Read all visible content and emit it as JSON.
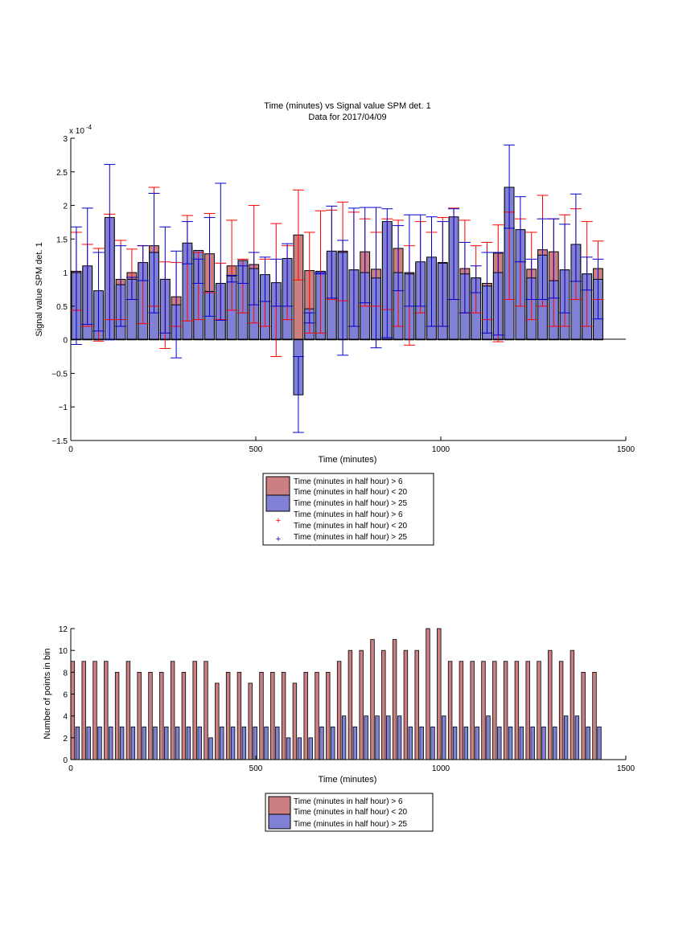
{
  "figure": {
    "title": "Time (minutes) vs Signal value SPM det. 1",
    "subtitle": "Data for 2017/04/09"
  },
  "chart_data": [
    {
      "type": "bar",
      "title": "Time (minutes) vs Signal value SPM det. 1",
      "subtitle": "Data for 2017/04/09",
      "xlabel": "Time (minutes)",
      "ylabel": "Signal value SPM det. 1",
      "y_exponent_label": "x 10",
      "y_exponent_power": "-4",
      "xlim": [
        0,
        1500
      ],
      "ylim": [
        -1.5,
        3
      ],
      "x_ticks": [
        0,
        500,
        1000,
        1500
      ],
      "y_ticks": [
        -1.5,
        -1,
        -0.5,
        0,
        0.5,
        1,
        1.5,
        2,
        2.5,
        3
      ],
      "y_tick_labels": [
        "−1.5",
        "−1",
        "−0.5",
        "0",
        "0.5",
        "1",
        "1.5",
        "2",
        "2.5",
        "3"
      ],
      "y_unit_scale": "1e-4",
      "x": [
        15,
        45,
        75,
        105,
        135,
        165,
        195,
        225,
        255,
        285,
        315,
        345,
        375,
        405,
        435,
        465,
        495,
        525,
        555,
        585,
        615,
        645,
        675,
        705,
        735,
        765,
        795,
        825,
        855,
        885,
        915,
        945,
        975,
        1005,
        1035,
        1065,
        1095,
        1125,
        1155,
        1185,
        1215,
        1245,
        1275,
        1305,
        1335,
        1365,
        1395,
        1425
      ],
      "series": [
        {
          "name": "Time (minutes in half hour) > 6\nTime (minutes in half hour) < 20",
          "color": "#cc7f80",
          "values": [
            1.02,
            1.09,
            0.67,
            1.8,
            0.9,
            1.0,
            1.14,
            1.4,
            0.9,
            0.64,
            1.39,
            1.3,
            1.28,
            0.83,
            1.1,
            1.18,
            1.12,
            0.96,
            0.74,
            1.19,
            1.56,
            1.03,
            1.01,
            1.3,
            1.32,
            1.04,
            1.31,
            1.05,
            1.73,
            1.36,
            1.0,
            1.14,
            1.2,
            1.15,
            1.82,
            1.06,
            0.92,
            0.84,
            1.29,
            2.27,
            1.63,
            1.05,
            1.34,
            1.31,
            1.04,
            1.41,
            0.98,
            1.06
          ],
          "err_low": [
            0.44,
            0.2,
            -0.02,
            0.3,
            0.3,
            0.6,
            0.24,
            0.5,
            -0.13,
            0.2,
            0.28,
            0.3,
            0.7,
            0.3,
            0.44,
            0.4,
            0.25,
            0.2,
            -0.25,
            0.3,
            0.89,
            0.1,
            0.1,
            0.6,
            0.58,
            0.2,
            0.5,
            0.5,
            0.45,
            0.2,
            -0.08,
            0.4,
            0.2,
            0.2,
            0.6,
            0.4,
            0.4,
            0.3,
            -0.03,
            0.6,
            0.5,
            0.3,
            0.5,
            0.2,
            0.2,
            0.6,
            0.2,
            0.6
          ],
          "err_high": [
            1.6,
            1.42,
            1.36,
            1.87,
            1.48,
            1.35,
            1.4,
            2.27,
            1.16,
            1.15,
            1.85,
            1.3,
            1.88,
            1.14,
            1.78,
            1.2,
            2.0,
            1.2,
            1.73,
            1.4,
            2.23,
            1.6,
            1.92,
            1.93,
            2.05,
            1.9,
            1.8,
            1.6,
            1.8,
            1.78,
            1.4,
            1.76,
            1.6,
            1.82,
            1.96,
            1.78,
            1.4,
            1.45,
            1.71,
            1.9,
            1.8,
            1.6,
            2.15,
            1.8,
            1.86,
            1.95,
            1.76,
            1.47
          ]
        },
        {
          "name": "Time (minutes in half hour) > 25",
          "color": "#8080d4",
          "values": [
            1.0,
            1.1,
            0.73,
            1.82,
            0.82,
            0.9,
            1.15,
            1.3,
            0.9,
            0.52,
            1.44,
            1.33,
            0.72,
            0.84,
            0.95,
            1.18,
            1.06,
            0.97,
            0.85,
            1.21,
            -0.82,
            0.46,
            1.02,
            1.32,
            1.3,
            1.04,
            1.0,
            0.92,
            1.76,
            1.0,
            0.98,
            1.16,
            1.23,
            1.14,
            1.83,
            0.98,
            0.92,
            0.8,
            1.0,
            2.27,
            1.64,
            0.92,
            1.26,
            0.88,
            1.04,
            1.42,
            0.98,
            0.9
          ],
          "err_low": [
            -0.07,
            0.23,
            0.13,
            0.0,
            0.2,
            0.6,
            0.88,
            0.4,
            0.1,
            -0.27,
            1.13,
            0.84,
            0.35,
            0.29,
            0.86,
            0.84,
            0.52,
            0.57,
            0.5,
            0.5,
            -1.38,
            0.25,
            0.98,
            0.62,
            -0.23,
            0.2,
            0.55,
            -0.12,
            0.03,
            0.73,
            0.5,
            0.5,
            0.2,
            0.2,
            0.6,
            0.4,
            0.7,
            0.1,
            0.07,
            1.66,
            1.16,
            0.6,
            0.6,
            0.62,
            0.4,
            0.87,
            0.74,
            0.31
          ],
          "err_high": [
            1.68,
            1.96,
            1.3,
            2.61,
            1.4,
            0.93,
            1.4,
            2.18,
            1.68,
            1.32,
            1.76,
            1.2,
            1.82,
            2.33,
            0.96,
            1.1,
            1.3,
            1.23,
            1.2,
            1.43,
            -0.25,
            0.4,
            1.0,
            1.99,
            1.48,
            1.96,
            1.97,
            1.97,
            1.95,
            1.7,
            1.86,
            1.86,
            1.83,
            1.76,
            1.95,
            1.45,
            1.1,
            1.3,
            1.3,
            2.9,
            2.13,
            1.2,
            1.8,
            1.8,
            1.72,
            2.17,
            1.23,
            1.2
          ]
        }
      ],
      "legend": {
        "placement": "below",
        "entries": [
          {
            "kind": "patch",
            "color": "#cc7f80",
            "lines": [
              "Time (minutes in half hour) > 6",
              "Time (minutes in half hour) < 20"
            ]
          },
          {
            "kind": "patch",
            "color": "#8080d4",
            "lines": [
              "Time (minutes in half hour) > 25"
            ]
          },
          {
            "kind": "marker",
            "color": "#ff0000",
            "symbol": "+",
            "lines": [
              "Time (minutes in half hour) > 6",
              "Time (minutes in half hour) < 20"
            ]
          },
          {
            "kind": "marker",
            "color": "#0000cc",
            "symbol": "+",
            "lines": [
              "Time (minutes in half hour) > 25"
            ]
          }
        ]
      },
      "errorbar_colors": [
        "#ff0000",
        "#0000cc"
      ],
      "grid": false
    },
    {
      "type": "bar",
      "title": "",
      "xlabel": "Time (minutes)",
      "ylabel": "Number of points in bin",
      "xlim": [
        0,
        1500
      ],
      "ylim": [
        0,
        12
      ],
      "x_ticks": [
        0,
        500,
        1000,
        1500
      ],
      "y_ticks": [
        0,
        2,
        4,
        6,
        8,
        10,
        12
      ],
      "x": [
        15,
        45,
        75,
        105,
        135,
        165,
        195,
        225,
        255,
        285,
        315,
        345,
        375,
        405,
        435,
        465,
        495,
        525,
        555,
        585,
        615,
        645,
        675,
        705,
        735,
        765,
        795,
        825,
        855,
        885,
        915,
        945,
        975,
        1005,
        1035,
        1065,
        1095,
        1125,
        1155,
        1185,
        1215,
        1245,
        1275,
        1305,
        1335,
        1365,
        1395,
        1425
      ],
      "series": [
        {
          "name": "Time (minutes in half hour) > 6\nTime (minutes in half hour) < 20",
          "color": "#cc7f80",
          "values": [
            9,
            9,
            9,
            9,
            8,
            9,
            8,
            8,
            8,
            9,
            8,
            9,
            9,
            7,
            8,
            8,
            7,
            8,
            8,
            8,
            7,
            8,
            8,
            8,
            9,
            10,
            10,
            11,
            10,
            11,
            10,
            10,
            12,
            12,
            9,
            9,
            9,
            9,
            9,
            9,
            9,
            9,
            9,
            10,
            9,
            10,
            8,
            8
          ]
        },
        {
          "name": "Time (minutes in half hour) > 25",
          "color": "#8080d4",
          "values": [
            3,
            3,
            3,
            3,
            3,
            3,
            3,
            3,
            3,
            3,
            3,
            3,
            2,
            3,
            3,
            3,
            3,
            3,
            3,
            2,
            2,
            2,
            3,
            3,
            4,
            3,
            4,
            4,
            4,
            4,
            3,
            3,
            3,
            4,
            3,
            3,
            3,
            4,
            3,
            3,
            3,
            3,
            3,
            3,
            4,
            4,
            3,
            3
          ]
        }
      ],
      "legend": {
        "placement": "below",
        "entries": [
          {
            "kind": "patch",
            "color": "#cc7f80",
            "lines": [
              "Time (minutes in half hour) > 6",
              "Time (minutes in half hour) < 20"
            ]
          },
          {
            "kind": "patch",
            "color": "#8080d4",
            "lines": [
              "Time (minutes in half hour) > 25"
            ]
          }
        ]
      },
      "grid": false
    }
  ]
}
